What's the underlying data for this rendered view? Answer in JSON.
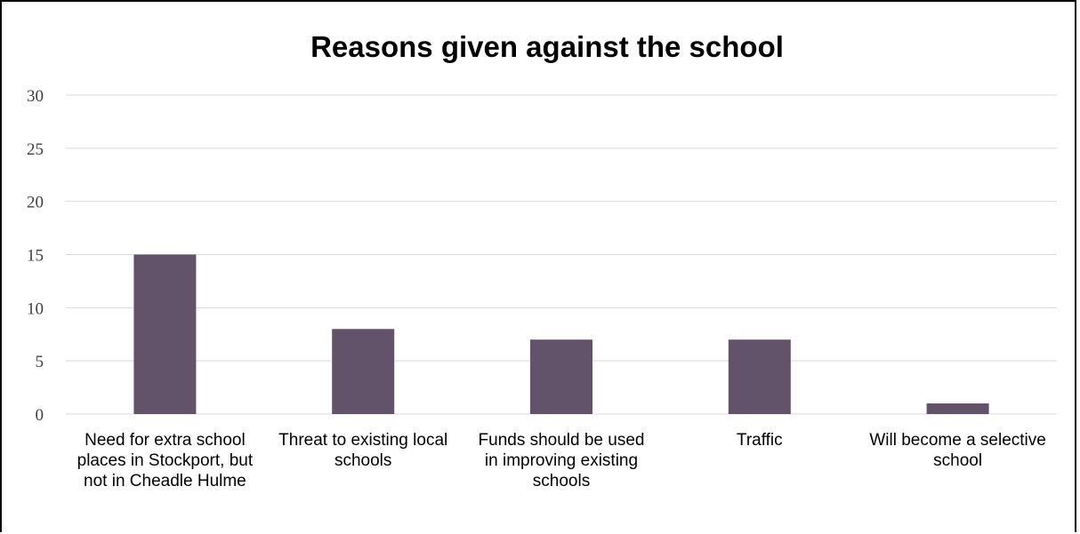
{
  "chart_data": {
    "type": "bar",
    "title": "Reasons given against the school",
    "categories": [
      "Need for extra school places in Stockport, but not in Cheadle Hulme",
      "Threat to existing local schools",
      "Funds should be used in improving existing schools",
      "Traffic",
      "Will become a selective school"
    ],
    "values": [
      15,
      8,
      7,
      7,
      1
    ],
    "ylim": [
      0,
      30
    ],
    "yticks": [
      0,
      5,
      10,
      15,
      20,
      25,
      30
    ],
    "xlabel": "",
    "ylabel": "",
    "grid": true,
    "legend": "none",
    "bar_color": "#62536a",
    "grid_color": "#d9d9d9"
  }
}
